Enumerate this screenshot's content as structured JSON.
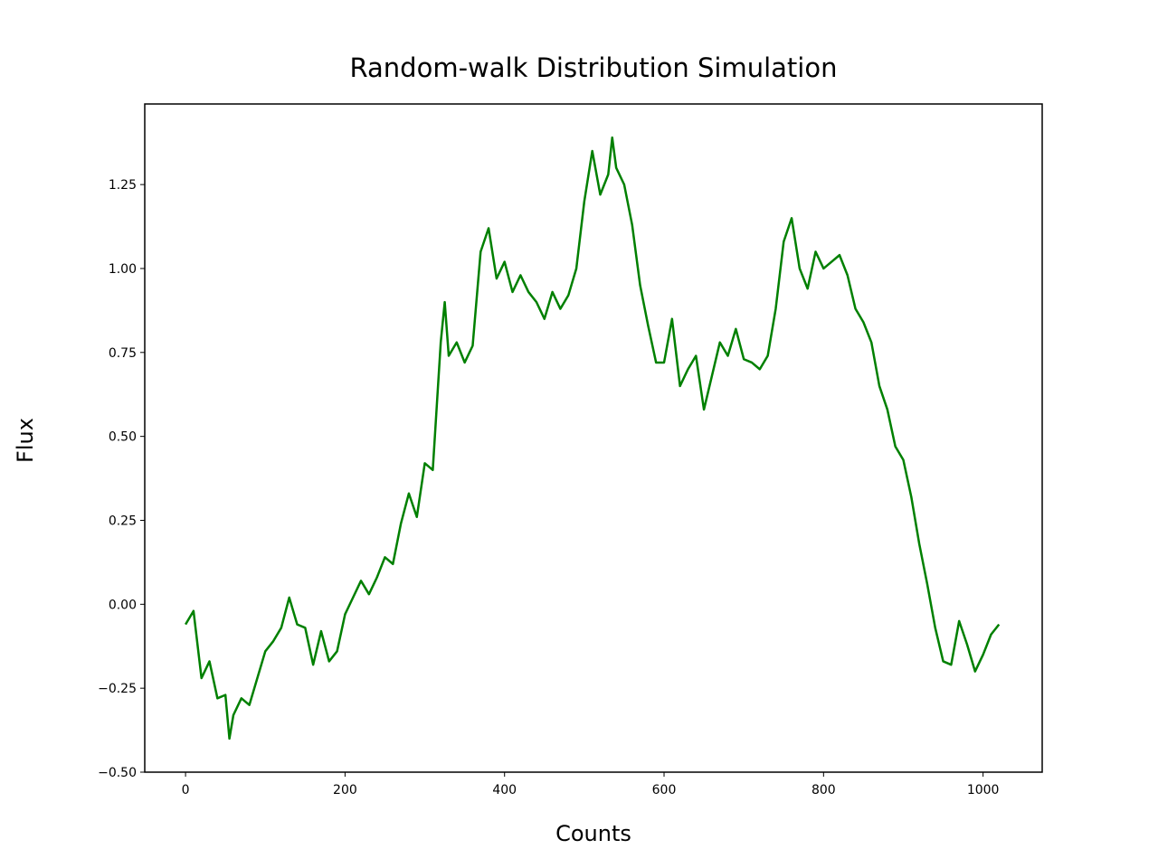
{
  "chart_data": {
    "type": "line",
    "title": "Random-walk Distribution Simulation",
    "x_label": "Counts",
    "y_label": "Flux",
    "x": [
      0,
      10,
      20,
      30,
      40,
      50,
      55,
      60,
      70,
      80,
      90,
      100,
      110,
      120,
      130,
      140,
      150,
      160,
      170,
      180,
      190,
      200,
      210,
      220,
      230,
      240,
      250,
      260,
      270,
      280,
      290,
      300,
      310,
      320,
      325,
      330,
      340,
      350,
      360,
      370,
      380,
      390,
      400,
      410,
      420,
      430,
      440,
      450,
      460,
      470,
      480,
      490,
      500,
      510,
      520,
      530,
      535,
      540,
      550,
      560,
      570,
      580,
      590,
      600,
      610,
      620,
      630,
      640,
      650,
      660,
      670,
      680,
      690,
      700,
      710,
      720,
      730,
      740,
      750,
      760,
      770,
      780,
      790,
      800,
      810,
      820,
      830,
      840,
      850,
      860,
      870,
      880,
      890,
      900,
      910,
      920,
      930,
      940,
      950,
      960,
      970,
      980,
      990,
      1000,
      1010,
      1020
    ],
    "series": [
      {
        "color": "#008000",
        "values": [
          -0.06,
          -0.02,
          -0.22,
          -0.17,
          -0.28,
          -0.27,
          -0.4,
          -0.33,
          -0.28,
          -0.3,
          -0.22,
          -0.14,
          -0.11,
          -0.07,
          0.02,
          -0.06,
          -0.07,
          -0.18,
          -0.08,
          -0.17,
          -0.14,
          -0.03,
          0.02,
          0.07,
          0.03,
          0.08,
          0.14,
          0.12,
          0.24,
          0.33,
          0.26,
          0.42,
          0.4,
          0.78,
          0.9,
          0.74,
          0.78,
          0.72,
          0.77,
          1.05,
          1.12,
          0.97,
          1.02,
          0.93,
          0.98,
          0.93,
          0.9,
          0.85,
          0.93,
          0.88,
          0.92,
          1.0,
          1.2,
          1.35,
          1.22,
          1.28,
          1.39,
          1.3,
          1.25,
          1.13,
          0.95,
          0.83,
          0.72,
          0.72,
          0.85,
          0.65,
          0.7,
          0.74,
          0.58,
          0.68,
          0.78,
          0.74,
          0.82,
          0.73,
          0.72,
          0.7,
          0.74,
          0.88,
          1.08,
          1.15,
          1.0,
          0.94,
          1.05,
          1.0,
          1.02,
          1.04,
          0.98,
          0.88,
          0.84,
          0.78,
          0.65,
          0.58,
          0.47,
          0.43,
          0.32,
          0.18,
          0.06,
          -0.07,
          -0.17,
          -0.18,
          -0.05,
          -0.12,
          -0.2,
          -0.15,
          -0.09,
          -0.06
        ]
      }
    ],
    "xlim": [
      -51.15,
      1074.15
    ],
    "xticks": [
      0,
      200,
      400,
      600,
      800,
      1000
    ],
    "ylim": [
      -0.5,
      1.49
    ],
    "yticks": [
      {
        "value": -0.5,
        "label": "−0.50"
      },
      {
        "value": -0.25,
        "label": "−0.25"
      },
      {
        "value": 0,
        "label": "0.00"
      },
      {
        "value": 0.25,
        "label": "0.25"
      },
      {
        "value": 0.5,
        "label": "0.50"
      },
      {
        "value": 0.75,
        "label": "0.75"
      },
      {
        "value": 1,
        "label": "1.00"
      },
      {
        "value": 1.25,
        "label": "1.25"
      }
    ],
    "grid": false
  }
}
